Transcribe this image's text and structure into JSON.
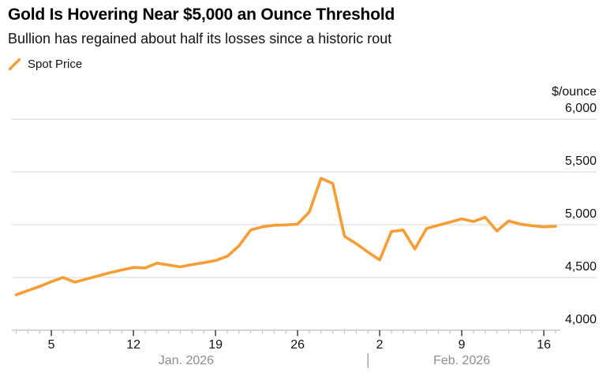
{
  "header": {
    "title": "Gold Is Hovering Near $5,000 an Ounce Threshold",
    "subtitle": "Bullion has regained about half its losses since a historic rout"
  },
  "legend": {
    "items": [
      {
        "label": "Spot Price",
        "marker": "diagonal-line-icon",
        "color": "#F79D33"
      }
    ]
  },
  "colors": {
    "line": "#F79D33",
    "grid": "#d9d9d9",
    "axis": "#b5b5b5",
    "minor_tick": "#c2c2c2",
    "major_tick": "#333333",
    "tick_label": "#111111",
    "month_label": "#8e8e8e",
    "unit_label": "#111111"
  },
  "chart_data": {
    "type": "line",
    "title": "Gold Is Hovering Near $5,000 an Ounce Threshold",
    "subtitle": "Bullion has regained about half its losses since a historic rout",
    "unit_label": "$/ounce",
    "grid": true,
    "legend_position": "top-left",
    "ylim": [
      4000,
      6000
    ],
    "yticks": [
      {
        "value": 4000,
        "label": "4,000"
      },
      {
        "value": 4500,
        "label": "4,500"
      },
      {
        "value": 5000,
        "label": "5,000"
      },
      {
        "value": 5500,
        "label": "5,500"
      },
      {
        "value": 6000,
        "label": "6,000"
      }
    ],
    "x": [
      "Jan 2",
      "Jan 3",
      "Jan 4",
      "Jan 5",
      "Jan 6",
      "Jan 7",
      "Jan 8",
      "Jan 9",
      "Jan 10",
      "Jan 11",
      "Jan 12",
      "Jan 13",
      "Jan 14",
      "Jan 15",
      "Jan 16",
      "Jan 17",
      "Jan 18",
      "Jan 19",
      "Jan 20",
      "Jan 21",
      "Jan 22",
      "Jan 23",
      "Jan 24",
      "Jan 25",
      "Jan 26",
      "Jan 27",
      "Jan 28",
      "Jan 29",
      "Jan 30",
      "Jan 31",
      "Feb 1",
      "Feb 2",
      "Feb 3",
      "Feb 4",
      "Feb 5",
      "Feb 6",
      "Feb 7",
      "Feb 8",
      "Feb 9",
      "Feb 10",
      "Feb 11",
      "Feb 12",
      "Feb 13",
      "Feb 14",
      "Feb 15",
      "Feb 16",
      "Feb 17"
    ],
    "series": [
      {
        "name": "Spot Price",
        "color": "#F79D33",
        "values": [
          4335,
          4375,
          4415,
          4460,
          4500,
          4455,
          4485,
          4515,
          4545,
          4570,
          4595,
          4590,
          4635,
          4618,
          4600,
          4622,
          4640,
          4660,
          4700,
          4800,
          4950,
          4980,
          4995,
          4998,
          5005,
          5120,
          5440,
          5390,
          4890,
          4820,
          4740,
          4665,
          4935,
          4950,
          4770,
          4965,
          4995,
          5025,
          5055,
          5030,
          5070,
          4940,
          5035,
          5005,
          4990,
          4980,
          4985
        ]
      }
    ],
    "xticks_major": [
      {
        "date": "Jan 5",
        "label": "5"
      },
      {
        "date": "Jan 12",
        "label": "12"
      },
      {
        "date": "Jan 19",
        "label": "19"
      },
      {
        "date": "Jan 26",
        "label": "26"
      },
      {
        "date": "Feb 2",
        "label": "2"
      },
      {
        "date": "Feb 9",
        "label": "9"
      },
      {
        "date": "Feb 16",
        "label": "16"
      }
    ],
    "month_labels": [
      {
        "prefix": "Jan",
        "label": "Jan. 2026"
      },
      {
        "prefix": "Feb",
        "label": "Feb. 2026"
      }
    ]
  }
}
